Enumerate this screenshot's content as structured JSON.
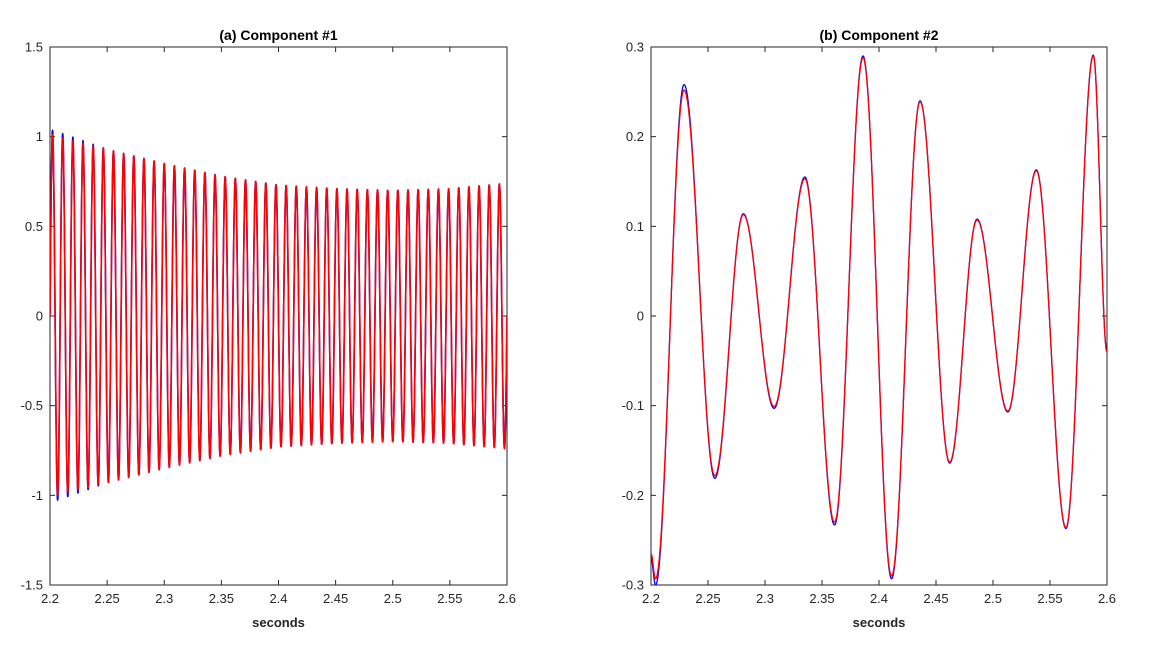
{
  "chart_data": [
    {
      "type": "line",
      "title": "(a)  Component #1",
      "xlabel": "seconds",
      "ylabel": "",
      "xlim": [
        2.2,
        2.6
      ],
      "ylim": [
        -1.5,
        1.5
      ],
      "xticks": [
        "2.2",
        "2.25",
        "2.3",
        "2.35",
        "2.4",
        "2.45",
        "2.5",
        "2.55",
        "2.6"
      ],
      "yticks": [
        "-1.5",
        "-1",
        "-0.5",
        "0",
        "0.5",
        "1",
        "1.5"
      ],
      "grid": false,
      "series": [
        {
          "color": "#0000ff",
          "oscillation_cycles": 45,
          "envelope": {
            "x": [
              2.2,
              2.205,
              2.25,
              2.3,
              2.35,
              2.4,
              2.45,
              2.5,
              2.55,
              2.6
            ],
            "y": [
              1.04,
              1.03,
              0.93,
              0.85,
              0.78,
              0.73,
              0.71,
              0.7,
              0.71,
              0.74
            ]
          }
        },
        {
          "color": "#ff0000",
          "oscillation_cycles": 45,
          "envelope": {
            "x": [
              2.2,
              2.205,
              2.25,
              2.3,
              2.35,
              2.4,
              2.45,
              2.5,
              2.55,
              2.6
            ],
            "y": [
              1.02,
              1.0,
              0.93,
              0.85,
              0.78,
              0.73,
              0.71,
              0.7,
              0.71,
              0.74
            ]
          }
        }
      ]
    },
    {
      "type": "line",
      "title": "(b)  Component #2",
      "xlabel": "seconds",
      "ylabel": "",
      "xlim": [
        2.2,
        2.6
      ],
      "ylim": [
        -0.3,
        0.3
      ],
      "xticks": [
        "2.2",
        "2.25",
        "2.3",
        "2.35",
        "2.4",
        "2.45",
        "2.5",
        "2.55",
        "2.6"
      ],
      "yticks": [
        "-0.3",
        "-0.2",
        "-0.1",
        "0",
        "0.1",
        "0.2",
        "0.3"
      ],
      "grid": false,
      "series": [
        {
          "color": "#0000ff",
          "x": [
            2.2,
            2.204,
            2.229,
            2.256,
            2.281,
            2.308,
            2.335,
            2.361,
            2.386,
            2.411,
            2.436,
            2.462,
            2.486,
            2.513,
            2.538,
            2.564,
            2.588,
            2.6
          ],
          "y": [
            -0.27,
            -0.3,
            0.258,
            -0.181,
            0.114,
            -0.103,
            0.155,
            -0.233,
            0.29,
            -0.293,
            0.24,
            -0.164,
            0.108,
            -0.107,
            0.163,
            -0.237,
            0.291,
            -0.04
          ]
        },
        {
          "color": "#ff0000",
          "x": [
            2.2,
            2.204,
            2.229,
            2.256,
            2.281,
            2.308,
            2.335,
            2.361,
            2.386,
            2.411,
            2.436,
            2.462,
            2.486,
            2.513,
            2.538,
            2.564,
            2.588,
            2.6
          ],
          "y": [
            -0.265,
            -0.293,
            0.252,
            -0.178,
            0.113,
            -0.101,
            0.153,
            -0.23,
            0.288,
            -0.29,
            0.239,
            -0.163,
            0.107,
            -0.106,
            0.162,
            -0.236,
            0.29,
            -0.04
          ]
        }
      ]
    }
  ]
}
